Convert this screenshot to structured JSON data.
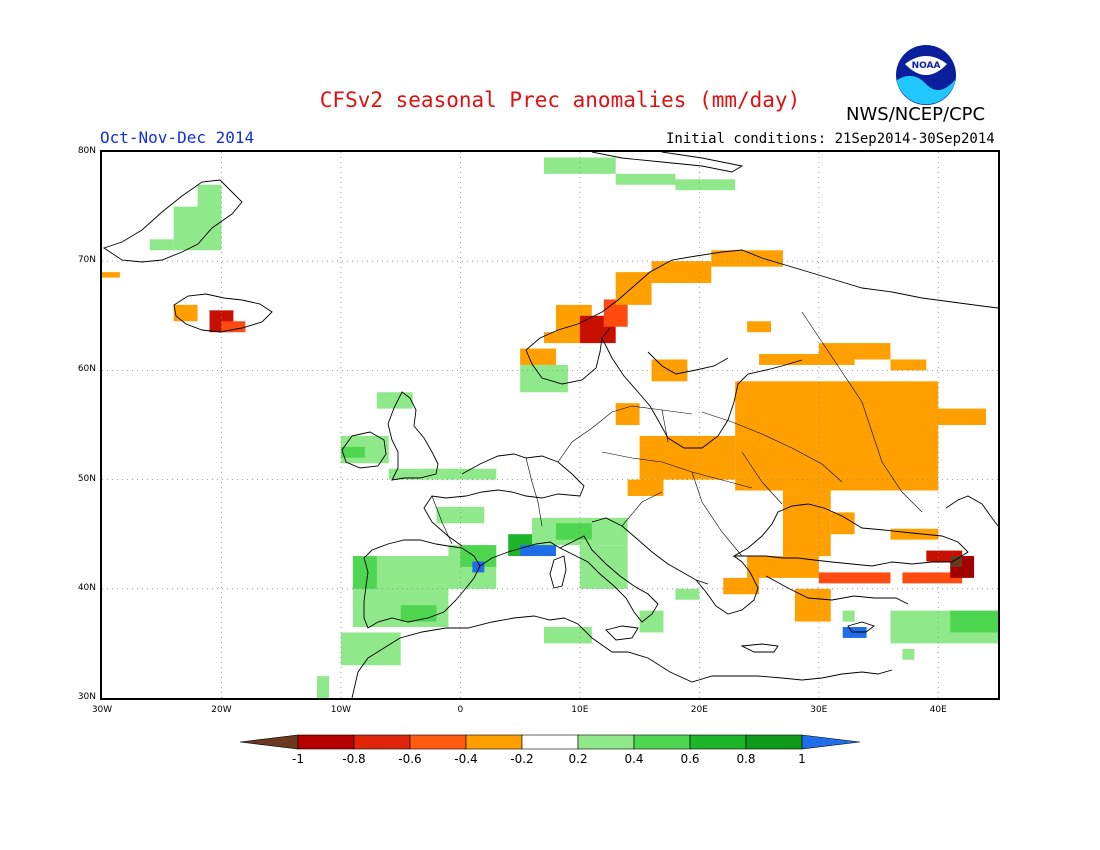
{
  "title": "CFSv2 seasonal Prec anomalies (mm/day)",
  "org": "NWS/NCEP/CPC",
  "logo_text": "NOAA",
  "period": "Oct-Nov-Dec 2014",
  "initial_conditions": "Initial conditions: 21Sep2014-30Sep2014",
  "lat_labels": [
    "80N",
    "70N",
    "60N",
    "50N",
    "40N",
    "30N"
  ],
  "lon_labels": [
    "30W",
    "20W",
    "10W",
    "0",
    "10E",
    "20E",
    "30E",
    "40E"
  ],
  "colorbar": {
    "labels": [
      "-1",
      "-0.8",
      "-0.6",
      "-0.4",
      "-0.2",
      "0.2",
      "0.4",
      "0.6",
      "0.8",
      "1"
    ],
    "colors": [
      "#6b3a1e",
      "#b40000",
      "#e0250a",
      "#ff5a10",
      "#ffa000",
      "#ffffff",
      "#8fe88a",
      "#4fd650",
      "#1fb52a",
      "#0f9a1a",
      "#1f6ee8"
    ]
  },
  "map": {
    "lon_range": [
      -30,
      45
    ],
    "lat_range": [
      30,
      80
    ],
    "colors": {
      "orange": "#ffa000",
      "red_orange": "#ff4a10",
      "red": "#c81000",
      "dark_red": "#a00000",
      "light_green": "#8fe88a",
      "green": "#4fd650",
      "dark_green": "#1fb52a",
      "blue": "#1f6ee8",
      "brown": "#6b3a1e"
    },
    "anomaly_regions": [
      {
        "c": "orange",
        "lon": [
          -30,
          -28.5
        ],
        "lat": [
          68.5,
          69
        ]
      },
      {
        "c": "orange",
        "lon": [
          -24,
          -22
        ],
        "lat": [
          64.5,
          66
        ]
      },
      {
        "c": "red",
        "lon": [
          -21,
          -19
        ],
        "lat": [
          63.5,
          65.5
        ]
      },
      {
        "c": "red_orange",
        "lon": [
          -20,
          -18
        ],
        "lat": [
          63.5,
          64.5
        ]
      },
      {
        "c": "light_green",
        "lon": [
          -24,
          -20
        ],
        "lat": [
          71,
          75
        ]
      },
      {
        "c": "light_green",
        "lon": [
          -22,
          -20
        ],
        "lat": [
          74,
          77
        ]
      },
      {
        "c": "light_green",
        "lon": [
          -26,
          -24
        ],
        "lat": [
          71,
          72
        ]
      },
      {
        "c": "light_green",
        "lon": [
          7,
          13
        ],
        "lat": [
          78,
          79.5
        ]
      },
      {
        "c": "light_green",
        "lon": [
          13,
          18
        ],
        "lat": [
          77,
          78
        ]
      },
      {
        "c": "light_green",
        "lon": [
          18,
          23
        ],
        "lat": [
          76.5,
          77.5
        ]
      },
      {
        "c": "orange",
        "lon": [
          7,
          10
        ],
        "lat": [
          62.5,
          63.5
        ]
      },
      {
        "c": "orange",
        "lon": [
          8,
          11
        ],
        "lat": [
          63,
          66
        ]
      },
      {
        "c": "red",
        "lon": [
          10,
          13
        ],
        "lat": [
          62.5,
          65
        ]
      },
      {
        "c": "red_orange",
        "lon": [
          12,
          14
        ],
        "lat": [
          64,
          66.5
        ]
      },
      {
        "c": "orange",
        "lon": [
          13,
          16
        ],
        "lat": [
          66,
          69
        ]
      },
      {
        "c": "orange",
        "lon": [
          16,
          21
        ],
        "lat": [
          68,
          70
        ]
      },
      {
        "c": "orange",
        "lon": [
          21,
          27
        ],
        "lat": [
          69.5,
          71
        ]
      },
      {
        "c": "orange",
        "lon": [
          5,
          8
        ],
        "lat": [
          60.5,
          62
        ]
      },
      {
        "c": "orange",
        "lon": [
          24,
          26
        ],
        "lat": [
          63.5,
          64.5
        ]
      },
      {
        "c": "orange",
        "lon": [
          16,
          19
        ],
        "lat": [
          59,
          61
        ]
      },
      {
        "c": "orange",
        "lon": [
          13,
          15
        ],
        "lat": [
          55,
          57
        ]
      },
      {
        "c": "orange",
        "lon": [
          25,
          33
        ],
        "lat": [
          60.5,
          61.5
        ]
      },
      {
        "c": "orange",
        "lon": [
          30,
          36
        ],
        "lat": [
          61,
          62.5
        ]
      },
      {
        "c": "orange",
        "lon": [
          36,
          39
        ],
        "lat": [
          60,
          61
        ]
      },
      {
        "c": "orange",
        "lon": [
          23,
          40
        ],
        "lat": [
          49,
          59
        ]
      },
      {
        "c": "orange",
        "lon": [
          39,
          44
        ],
        "lat": [
          55,
          56.5
        ]
      },
      {
        "c": "orange",
        "lon": [
          15,
          23
        ],
        "lat": [
          50,
          54
        ]
      },
      {
        "c": "orange",
        "lon": [
          14,
          17
        ],
        "lat": [
          48.5,
          50
        ]
      },
      {
        "c": "orange",
        "lon": [
          27,
          31
        ],
        "lat": [
          43,
          49
        ]
      },
      {
        "c": "orange",
        "lon": [
          31,
          33
        ],
        "lat": [
          45,
          47
        ]
      },
      {
        "c": "orange",
        "lon": [
          24,
          30
        ],
        "lat": [
          41,
          43
        ]
      },
      {
        "c": "orange",
        "lon": [
          22,
          25
        ],
        "lat": [
          39.5,
          41
        ]
      },
      {
        "c": "orange",
        "lon": [
          28,
          31
        ],
        "lat": [
          37,
          40
        ]
      },
      {
        "c": "red_orange",
        "lon": [
          30,
          36
        ],
        "lat": [
          40.5,
          41.5
        ]
      },
      {
        "c": "red_orange",
        "lon": [
          37,
          42
        ],
        "lat": [
          40.5,
          41.5
        ]
      },
      {
        "c": "orange",
        "lon": [
          36,
          40
        ],
        "lat": [
          44.5,
          45.5
        ]
      },
      {
        "c": "red",
        "lon": [
          39,
          42
        ],
        "lat": [
          42.5,
          43.5
        ]
      },
      {
        "c": "dark_red",
        "lon": [
          41,
          43
        ],
        "lat": [
          41,
          43
        ]
      },
      {
        "c": "brown",
        "lon": [
          41,
          42
        ],
        "lat": [
          42,
          43
        ]
      },
      {
        "c": "light_green",
        "lon": [
          -10,
          -6
        ],
        "lat": [
          51.5,
          54
        ]
      },
      {
        "c": "green",
        "lon": [
          -10,
          -8
        ],
        "lat": [
          52,
          53
        ]
      },
      {
        "c": "light_green",
        "lon": [
          -7,
          -4
        ],
        "lat": [
          56.5,
          58
        ]
      },
      {
        "c": "light_green",
        "lon": [
          -6,
          3
        ],
        "lat": [
          50,
          51
        ]
      },
      {
        "c": "light_green",
        "lon": [
          5,
          9
        ],
        "lat": [
          58,
          60.5
        ]
      },
      {
        "c": "light_green",
        "lon": [
          -2,
          2
        ],
        "lat": [
          46,
          47.5
        ]
      },
      {
        "c": "light_green",
        "lon": [
          -9,
          -1
        ],
        "lat": [
          36.5,
          43
        ]
      },
      {
        "c": "green",
        "lon": [
          -9,
          -7
        ],
        "lat": [
          40,
          43
        ]
      },
      {
        "c": "green",
        "lon": [
          -5,
          -2
        ],
        "lat": [
          37,
          38.5
        ]
      },
      {
        "c": "light_green",
        "lon": [
          -1,
          3
        ],
        "lat": [
          40,
          44
        ]
      },
      {
        "c": "green",
        "lon": [
          0,
          3
        ],
        "lat": [
          42,
          44
        ]
      },
      {
        "c": "dark_green",
        "lon": [
          4,
          8
        ],
        "lat": [
          43,
          45
        ]
      },
      {
        "c": "blue",
        "lon": [
          5,
          8
        ],
        "lat": [
          43,
          44
        ]
      },
      {
        "c": "blue",
        "lon": [
          1,
          2
        ],
        "lat": [
          41.5,
          42.5
        ]
      },
      {
        "c": "light_green",
        "lon": [
          6,
          14
        ],
        "lat": [
          44,
          46.5
        ]
      },
      {
        "c": "green",
        "lon": [
          8,
          11
        ],
        "lat": [
          44.5,
          46
        ]
      },
      {
        "c": "light_green",
        "lon": [
          10,
          14
        ],
        "lat": [
          40,
          44
        ]
      },
      {
        "c": "light_green",
        "lon": [
          -10,
          -5
        ],
        "lat": [
          33,
          36
        ]
      },
      {
        "c": "light_green",
        "lon": [
          -12,
          -11
        ],
        "lat": [
          30,
          32
        ]
      },
      {
        "c": "light_green",
        "lon": [
          7,
          11
        ],
        "lat": [
          35,
          36.5
        ]
      },
      {
        "c": "light_green",
        "lon": [
          18,
          20
        ],
        "lat": [
          39,
          40
        ]
      },
      {
        "c": "light_green",
        "lon": [
          15,
          17
        ],
        "lat": [
          36,
          38
        ]
      },
      {
        "c": "light_green",
        "lon": [
          36,
          45
        ],
        "lat": [
          35,
          38
        ]
      },
      {
        "c": "green",
        "lon": [
          41,
          45
        ],
        "lat": [
          36,
          38
        ]
      },
      {
        "c": "light_green",
        "lon": [
          32,
          33
        ],
        "lat": [
          37,
          38
        ]
      },
      {
        "c": "blue",
        "lon": [
          32,
          34
        ],
        "lat": [
          35.5,
          36.5
        ]
      },
      {
        "c": "light_green",
        "lon": [
          37,
          38
        ],
        "lat": [
          33.5,
          34.5
        ]
      }
    ]
  }
}
